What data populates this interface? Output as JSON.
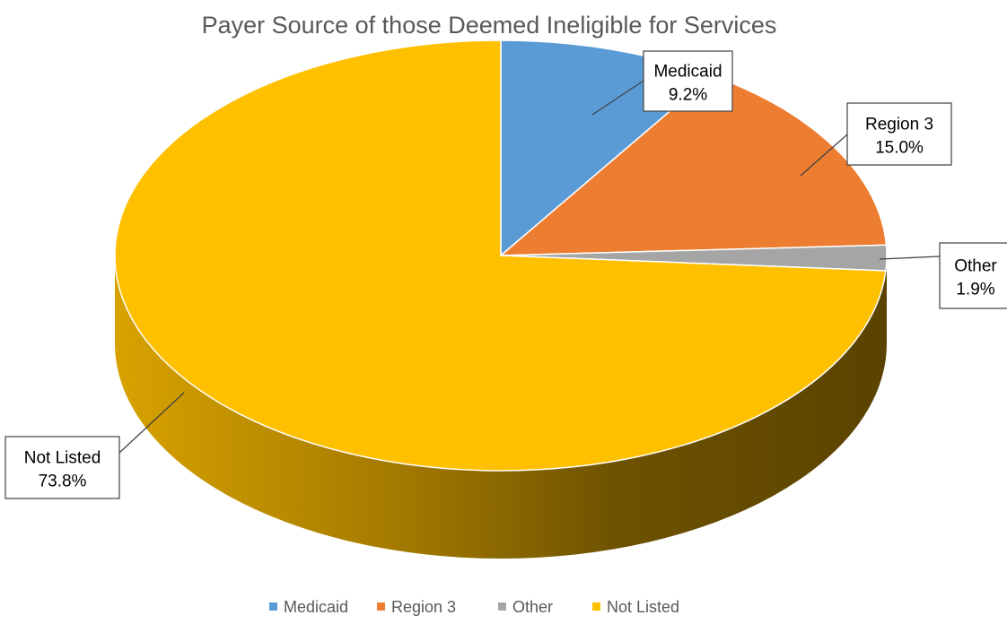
{
  "chart_data": {
    "type": "pie",
    "title": "Payer Source of those Deemed Ineligible for Services",
    "slices": [
      {
        "label": "Medicaid",
        "value": 9.2,
        "display": "9.2%",
        "color": "#5B9BD5"
      },
      {
        "label": "Region 3",
        "value": 15.0,
        "display": "15.0%",
        "color": "#ED7D31"
      },
      {
        "label": "Other",
        "value": 1.9,
        "display": "1.9%",
        "color": "#A5A5A5"
      },
      {
        "label": "Not Listed",
        "value": 73.8,
        "display": "73.8%",
        "color": "#FFC000"
      }
    ],
    "legend_position": "bottom",
    "style": "3d"
  }
}
